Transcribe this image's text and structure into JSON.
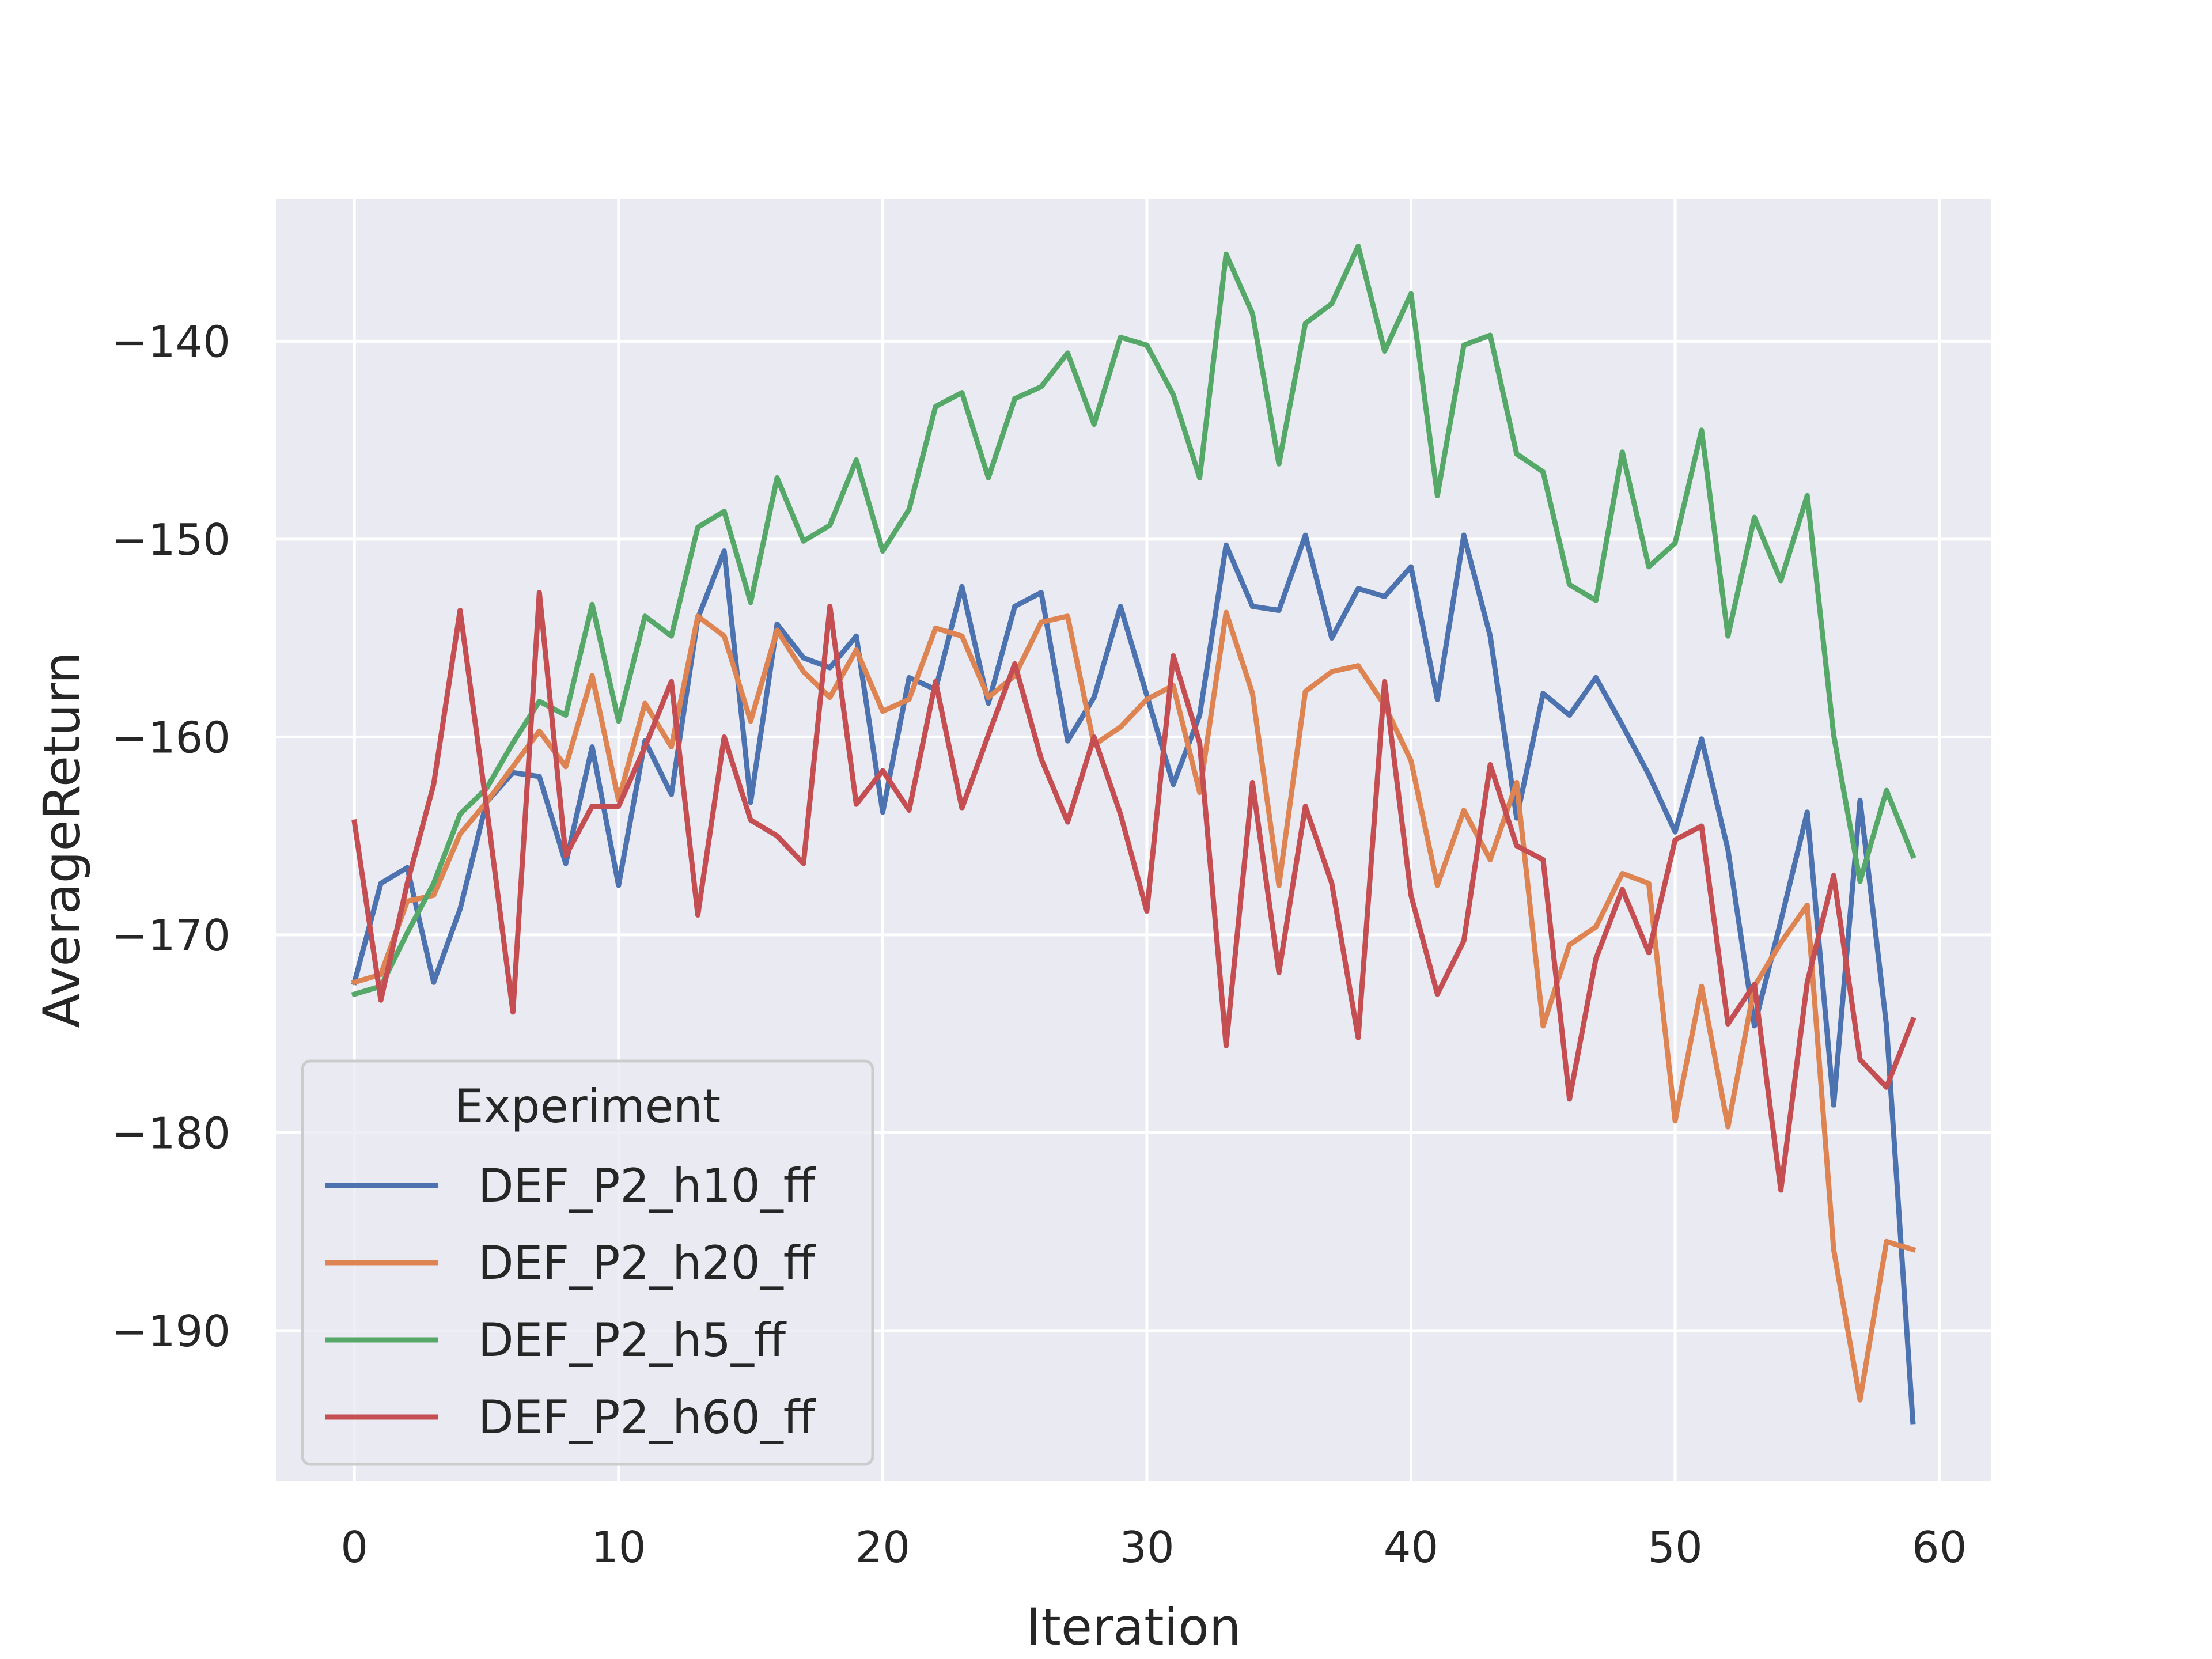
{
  "chart_data": {
    "type": "line",
    "title": "",
    "xlabel": "Iteration",
    "ylabel": "AverageReturn",
    "xlim": [
      -2.95,
      61.95
    ],
    "ylim": [
      -197.6,
      -132.8
    ],
    "xticks": [
      0,
      10,
      20,
      30,
      40,
      50,
      60
    ],
    "yticks": [
      -140,
      -150,
      -160,
      -170,
      -180,
      -190
    ],
    "tick_labels_x": [
      "0",
      "10",
      "20",
      "30",
      "40",
      "50",
      "60"
    ],
    "tick_labels_y": [
      "−140",
      "−150",
      "−160",
      "−170",
      "−180",
      "−190"
    ],
    "grid": true,
    "legend": {
      "title": "Experiment",
      "placement": "lower-left"
    },
    "colors": {
      "plot_background": "#eaeaf2",
      "grid": "#ffffff",
      "text": "#262626"
    },
    "series": [
      {
        "name": "DEF_P2_h10_ff",
        "color": "#4c72b0",
        "values": [
          -172.4,
          -167.4,
          -166.6,
          -172.4,
          -168.7,
          -163.3,
          -161.8,
          -162.0,
          -166.4,
          -160.5,
          -167.5,
          -160.2,
          -162.9,
          -154.0,
          -150.6,
          -163.3,
          -154.3,
          -156.0,
          -156.5,
          -154.9,
          -163.8,
          -157.0,
          -157.6,
          -152.4,
          -158.3,
          -153.4,
          -152.7,
          -160.2,
          -158.0,
          -153.4,
          -157.9,
          -162.4,
          -158.9,
          -150.3,
          -153.4,
          -153.6,
          -149.8,
          -155.0,
          -152.5,
          -152.9,
          -151.4,
          -158.1,
          -149.8,
          -154.9,
          -164.1,
          -157.8,
          -158.9,
          -157.0,
          -159.4,
          -161.9,
          -164.8,
          -160.1,
          -165.7,
          -174.6,
          -169.3,
          -163.8,
          -178.6,
          -163.2,
          -174.6,
          -194.6
        ]
      },
      {
        "name": "DEF_P2_h20_ff",
        "color": "#dd8452",
        "values": [
          -172.4,
          -172.0,
          -168.3,
          -168.0,
          -164.9,
          -163.3,
          -161.5,
          -159.7,
          -161.5,
          -156.9,
          -163.2,
          -158.3,
          -160.5,
          -153.9,
          -154.9,
          -159.2,
          -154.6,
          -156.7,
          -158.0,
          -155.6,
          -158.7,
          -158.1,
          -154.5,
          -154.9,
          -158.0,
          -156.9,
          -154.2,
          -153.9,
          -160.4,
          -159.5,
          -158.1,
          -157.4,
          -162.8,
          -153.7,
          -157.8,
          -167.5,
          -157.7,
          -156.7,
          -156.4,
          -158.4,
          -161.2,
          -167.5,
          -163.7,
          -166.2,
          -162.3,
          -174.6,
          -170.5,
          -169.6,
          -166.9,
          -167.4,
          -179.4,
          -172.6,
          -179.7,
          -172.6,
          -170.4,
          -168.5,
          -185.9,
          -193.5,
          -185.5,
          -185.9
        ]
      },
      {
        "name": "DEF_P2_h5_ff",
        "color": "#55a868",
        "values": [
          -173.0,
          -172.6,
          -169.9,
          -167.4,
          -163.9,
          -162.6,
          -160.3,
          -158.2,
          -158.9,
          -153.3,
          -159.2,
          -153.9,
          -154.9,
          -149.4,
          -148.6,
          -153.2,
          -146.9,
          -150.1,
          -149.3,
          -146.0,
          -150.6,
          -148.5,
          -143.3,
          -142.6,
          -146.9,
          -142.9,
          -142.3,
          -140.6,
          -144.2,
          -139.8,
          -140.2,
          -142.7,
          -146.9,
          -135.6,
          -138.6,
          -146.2,
          -139.1,
          -138.1,
          -135.2,
          -140.5,
          -137.6,
          -147.8,
          -140.2,
          -139.7,
          -145.7,
          -146.6,
          -152.3,
          -153.1,
          -145.6,
          -151.4,
          -150.2,
          -144.5,
          -154.9,
          -148.9,
          -152.1,
          -147.8,
          -159.9,
          -167.3,
          -162.7,
          -166.0
        ]
      },
      {
        "name": "DEF_P2_h60_ff",
        "color": "#c44e52",
        "values": [
          -164.3,
          -173.3,
          -167.4,
          -162.4,
          -153.6,
          -163.5,
          -173.9,
          -152.7,
          -166.0,
          -163.5,
          -163.5,
          -160.5,
          -157.2,
          -169.0,
          -160.0,
          -164.2,
          -165.0,
          -166.4,
          -153.4,
          -163.4,
          -161.7,
          -163.7,
          -157.2,
          -163.6,
          -159.9,
          -156.3,
          -161.1,
          -164.3,
          -160.0,
          -163.9,
          -168.8,
          -155.9,
          -160.3,
          -175.6,
          -162.3,
          -171.9,
          -163.5,
          -167.4,
          -175.2,
          -157.2,
          -168.0,
          -173.0,
          -170.3,
          -161.4,
          -165.5,
          -166.2,
          -178.3,
          -171.2,
          -167.7,
          -170.9,
          -165.2,
          -164.5,
          -174.5,
          -172.5,
          -182.9,
          -172.4,
          -167.0,
          -176.3,
          -177.7,
          -174.3
        ]
      }
    ]
  }
}
